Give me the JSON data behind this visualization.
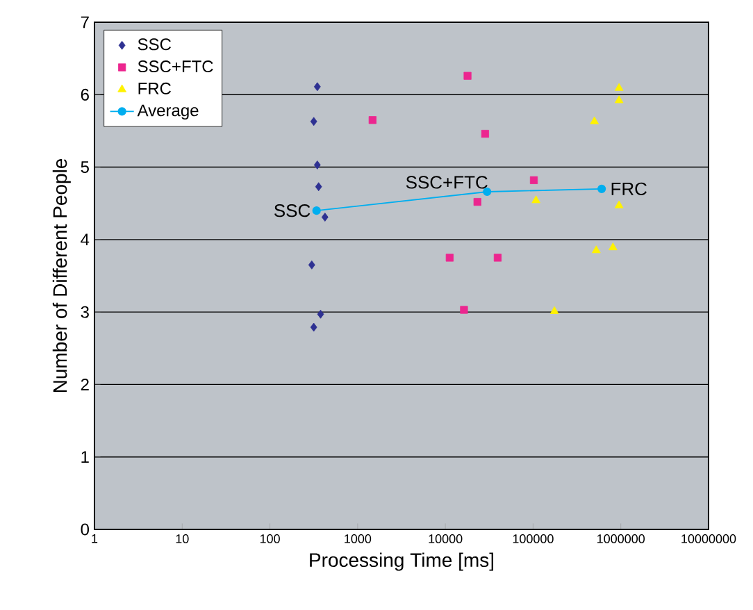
{
  "chart_data": {
    "type": "scatter",
    "xlabel": "Processing Time [ms]",
    "ylabel": "Number of Different People",
    "log": "x",
    "grid": "y",
    "legend": "top left",
    "xlim": [
      1,
      10000000
    ],
    "xticks": [
      1,
      10,
      100,
      1000,
      10000,
      100000,
      1000000,
      10000000
    ],
    "ylim": [
      0,
      7
    ],
    "yticks": [
      0,
      1,
      2,
      3,
      4,
      5,
      6,
      7
    ],
    "series": [
      {
        "name": "SSC",
        "marker": "diamond",
        "color": "#2e3192",
        "x": [
          347,
          316,
          347,
          359,
          424,
          300,
          378,
          316
        ],
        "values": [
          6.11,
          5.63,
          5.03,
          4.73,
          4.31,
          3.65,
          2.97,
          2.79
        ]
      },
      {
        "name": "SSC+FTC",
        "marker": "square",
        "color": "#ec268f",
        "x": [
          1480,
          17900,
          28400,
          102000,
          23200,
          11200,
          39500,
          16300
        ],
        "values": [
          5.65,
          6.26,
          5.46,
          4.82,
          4.52,
          3.75,
          3.75,
          3.03
        ]
      },
      {
        "name": "FRC",
        "marker": "triangle",
        "color": "#fff200",
        "x": [
          955000,
          955000,
          500000,
          108000,
          605000,
          955000,
          525000,
          813000,
          175000
        ],
        "values": [
          6.09,
          5.92,
          5.63,
          4.54,
          null,
          4.47,
          3.85,
          3.89,
          3.01
        ]
      },
      {
        "name": "Average",
        "type": "line",
        "marker": "circle",
        "color": "#00aeef",
        "x": [
          340,
          29900,
          605000
        ],
        "values": [
          4.4,
          4.66,
          4.7
        ]
      }
    ],
    "annotations": [
      {
        "text": "SSC",
        "x": 340,
        "y": 4.4
      },
      {
        "text": "SSC+FTC",
        "x": 29900,
        "y": 4.66
      },
      {
        "text": "FRC",
        "x": 605000,
        "y": 4.7
      }
    ]
  }
}
